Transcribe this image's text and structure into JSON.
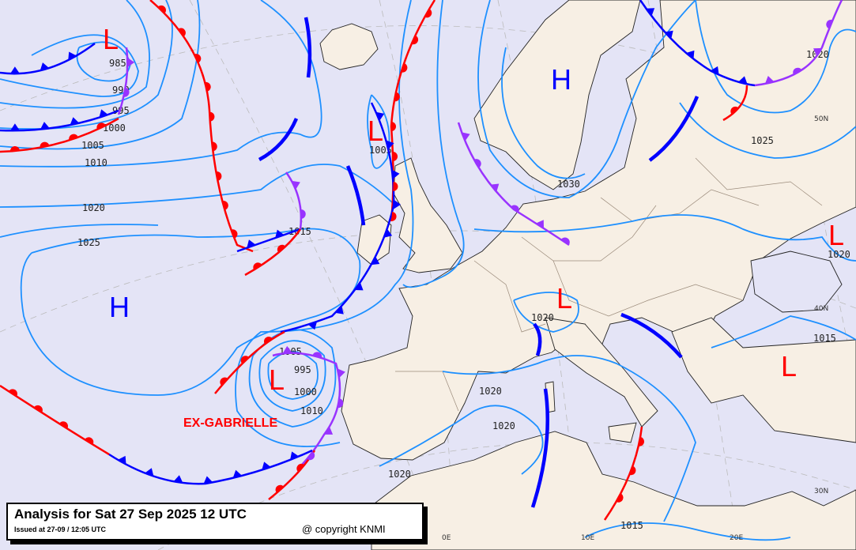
{
  "caption": {
    "title": "Analysis for Sat 27 Sep 2025 12 UTC",
    "issued": "Issued at 27-09 / 12:05 UTC",
    "copyright": "@ copyright KNMI"
  },
  "colors": {
    "low": "#ff0000",
    "high": "#0000ff",
    "isobar": "#1e90ff",
    "cold_front": "#0000ff",
    "warm_front": "#ff0000",
    "occluded_front": "#9933ff",
    "land": "#f7efe4",
    "sea": "#e4e4f6"
  },
  "pressure_centers": [
    {
      "type": "L",
      "label": "L"
    },
    {
      "type": "L",
      "label": "L"
    },
    {
      "type": "H",
      "label": "H"
    },
    {
      "type": "L",
      "label": "L"
    },
    {
      "type": "L",
      "label": "L"
    },
    {
      "type": "H",
      "label": "H"
    },
    {
      "type": "L",
      "label": "L"
    },
    {
      "type": "L",
      "label": "L"
    }
  ],
  "storm_name": "EX-GABRIELLE",
  "isobar_labels": [
    "985",
    "990",
    "995",
    "1000",
    "1005",
    "1010",
    "1020",
    "1025",
    "1005",
    "1015",
    "1030",
    "1025",
    "1020",
    "1020",
    "1020",
    "1015",
    "1005",
    "995",
    "1000",
    "1010",
    "1020",
    "1020",
    "1020",
    "1015"
  ],
  "graticule_labels": {
    "lat": [
      "50N",
      "40N",
      "30N"
    ],
    "lon": [
      "0E",
      "10E",
      "20E"
    ]
  },
  "fronts": [
    {
      "type": "cold"
    },
    {
      "type": "warm"
    },
    {
      "type": "occluded"
    },
    {
      "type": "trough"
    }
  ]
}
